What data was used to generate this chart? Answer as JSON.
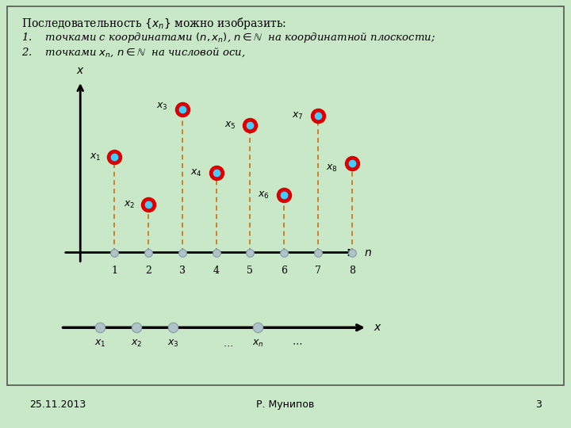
{
  "bg_color": "#c8e8c8",
  "slide_bg": "#d4ecd4",
  "n_values": [
    1,
    2,
    3,
    4,
    5,
    6,
    7,
    8
  ],
  "x_values": [
    3.0,
    1.5,
    4.5,
    2.5,
    4.0,
    1.8,
    4.3,
    2.8
  ],
  "date_text": "25.11.2013",
  "author_text": "Р. Мунипов",
  "page_text": "3",
  "dot_color_outer": "#dd0000",
  "dot_color_inner": "#44ccff",
  "axis_dot_color": "#b0c4c8",
  "numberline_dot_color": "#b0c4c8",
  "dashed_color": "#cc6600"
}
